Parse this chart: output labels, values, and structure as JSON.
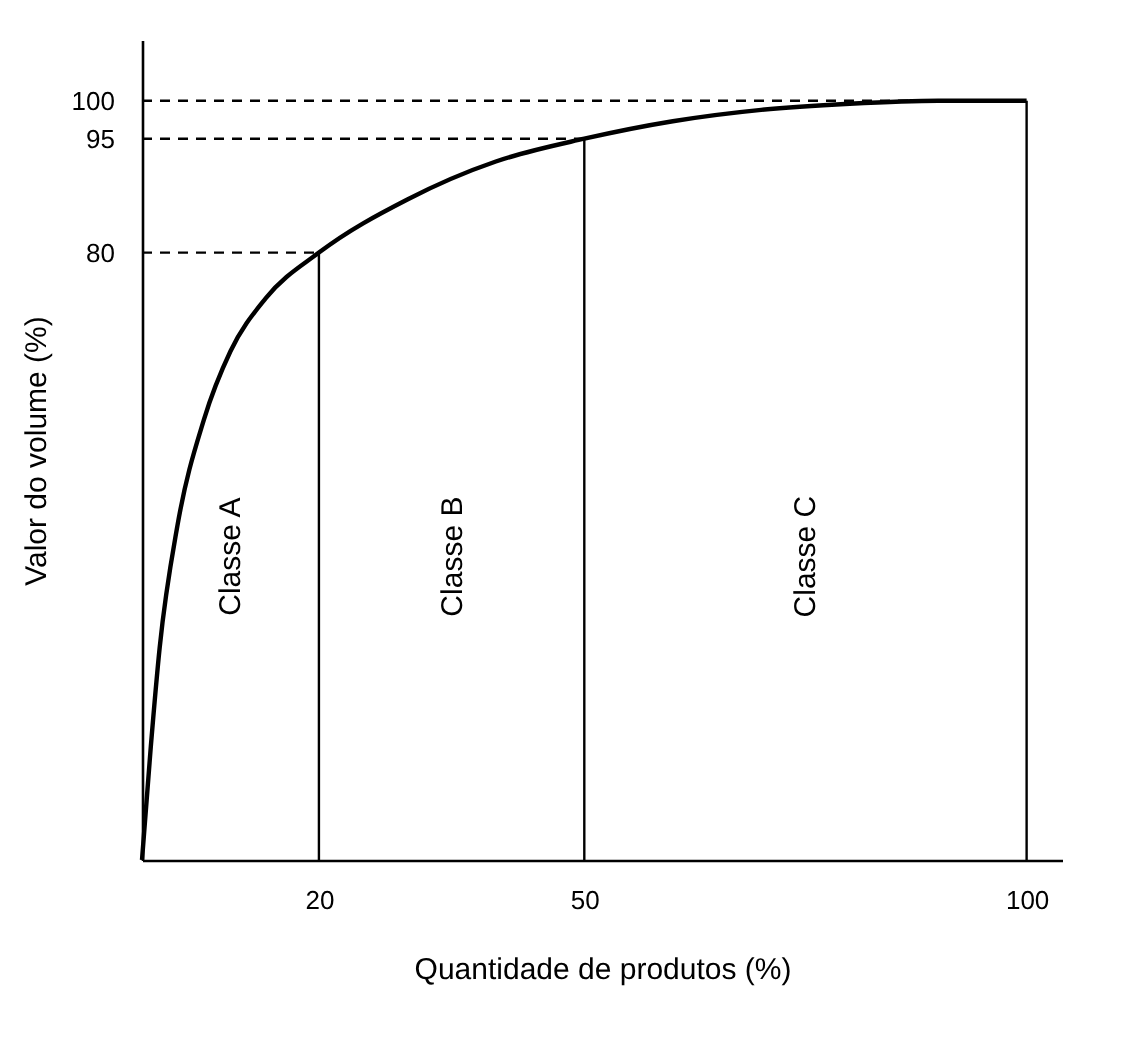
{
  "chart_data": {
    "type": "line",
    "xlabel": "Quantidade de produtos (%)",
    "ylabel": "Valor do volume (%)",
    "x": [
      0,
      1,
      2,
      4,
      7,
      10,
      14,
      20,
      30,
      40,
      50,
      60,
      70,
      80,
      90,
      100
    ],
    "values": [
      0,
      15,
      28,
      44,
      58,
      67,
      74,
      80,
      87,
      92,
      95,
      97.3,
      98.8,
      99.6,
      100,
      100
    ],
    "color": "#000000",
    "xlim": [
      0,
      104
    ],
    "ylim": [
      0,
      108
    ],
    "xticks": [
      20,
      50,
      100
    ],
    "yticks": [
      80,
      95,
      100
    ],
    "grid": false,
    "ref_lines": [
      {
        "axis": "y",
        "value": 80,
        "line_style": "dashed",
        "color": "#000000"
      },
      {
        "axis": "y",
        "value": 95,
        "line_style": "dashed",
        "color": "#000000"
      },
      {
        "axis": "y",
        "value": 100,
        "line_style": "dashed",
        "color": "#000000"
      },
      {
        "axis": "x",
        "value": 20,
        "line_style": "solid",
        "color": "#000000"
      },
      {
        "axis": "x",
        "value": 50,
        "line_style": "solid",
        "color": "#000000"
      },
      {
        "axis": "x",
        "value": 100,
        "line_style": "solid",
        "color": "#000000"
      }
    ],
    "annotations": [
      "Classe A",
      "Classe B",
      "Classe C"
    ]
  }
}
